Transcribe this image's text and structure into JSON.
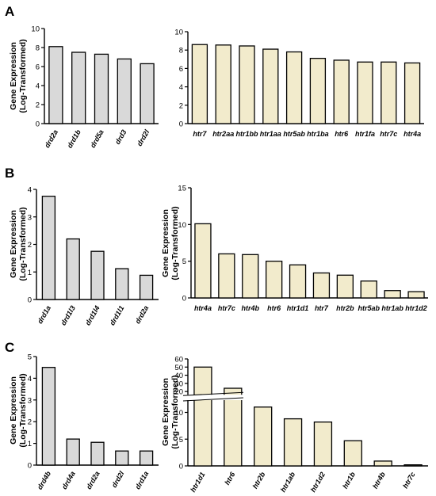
{
  "panels": [
    "A",
    "B",
    "C"
  ],
  "colors": {
    "gray_bar": "#d9d9d9",
    "beige_bar": "#f2ebcc",
    "stroke": "#000000"
  },
  "chart_data": [
    {
      "type": "bar",
      "panel": "A",
      "ylabel": [
        "Gene Expression",
        "(Log-Transformed)"
      ],
      "categories": [
        "drd2a",
        "drd1b",
        "drd5a",
        "drd3",
        "drd2l"
      ],
      "values": [
        8.1,
        7.5,
        7.3,
        6.8,
        6.3
      ],
      "ylim": [
        0,
        10
      ],
      "yticks": [
        0,
        2,
        4,
        6,
        8,
        10
      ],
      "bar_color": "gray",
      "label_rotation": -60
    },
    {
      "type": "bar",
      "panel": "A",
      "ylabel": [],
      "categories": [
        "htr7",
        "htr2aa",
        "htr1bb",
        "htr1aa",
        "htr5ab",
        "htr1ba",
        "htr6",
        "htr1fa",
        "htr7c",
        "htr4a"
      ],
      "values": [
        8.6,
        8.55,
        8.45,
        8.1,
        7.8,
        7.1,
        6.9,
        6.7,
        6.7,
        6.6
      ],
      "ylim": [
        0,
        10
      ],
      "yticks": [
        0,
        2,
        4,
        6,
        8,
        10
      ],
      "bar_color": "beige",
      "label_rotation": 0
    },
    {
      "type": "bar",
      "panel": "B",
      "ylabel": [
        "Gene Expression",
        "(Log-Transformed)"
      ],
      "categories": [
        "drd1a",
        "drd1l3",
        "drd1l4",
        "drd1l1",
        "drd2a"
      ],
      "values": [
        3.75,
        2.2,
        1.75,
        1.12,
        0.88
      ],
      "ylim": [
        0,
        4
      ],
      "yticks": [
        0,
        1,
        2,
        3,
        4
      ],
      "bar_color": "gray",
      "label_rotation": -60
    },
    {
      "type": "bar",
      "panel": "B",
      "ylabel": [
        "Gene Expression",
        "(Log-Transformed)"
      ],
      "categories": [
        "htr4a",
        "htr7c",
        "htr4b",
        "htr6",
        "htr1d1",
        "htr7",
        "htr2b",
        "htr5ab",
        "htr1ab",
        "htr1d2"
      ],
      "values": [
        10.1,
        6.0,
        5.9,
        5.0,
        4.5,
        3.4,
        3.1,
        2.3,
        1.0,
        0.85
      ],
      "ylim": [
        0,
        15
      ],
      "yticks": [
        0,
        5,
        10,
        15
      ],
      "bar_color": "beige",
      "label_rotation": 0
    },
    {
      "type": "bar",
      "panel": "C",
      "ylabel": [
        "Gene Expression",
        "(Log-Transformed)"
      ],
      "categories": [
        "drd4b",
        "drd4a",
        "drd2a",
        "drd2l",
        "drd1a"
      ],
      "values": [
        4.5,
        1.2,
        1.05,
        0.65,
        0.65
      ],
      "ylim": [
        0,
        5
      ],
      "yticks": [
        0,
        1,
        2,
        3,
        4,
        5
      ],
      "bar_color": "gray",
      "label_rotation": -60
    },
    {
      "type": "bar",
      "panel": "C",
      "ylabel": [
        "Gene Expression",
        "(Log-Transformed)"
      ],
      "categories": [
        "htr1d1",
        "htr6",
        "htr2b",
        "htr1ab",
        "htr1d2",
        "htr1b",
        "htr4b",
        "htr7c"
      ],
      "values": [
        50,
        24,
        11,
        8.8,
        8.2,
        4.7,
        0.9,
        0.2
      ],
      "ylim": [
        0,
        60
      ],
      "yticks": [
        0,
        5,
        10,
        20,
        30,
        40,
        50,
        60
      ],
      "axis_break": [
        12,
        18
      ],
      "bar_color": "beige",
      "label_rotation": -60
    }
  ]
}
